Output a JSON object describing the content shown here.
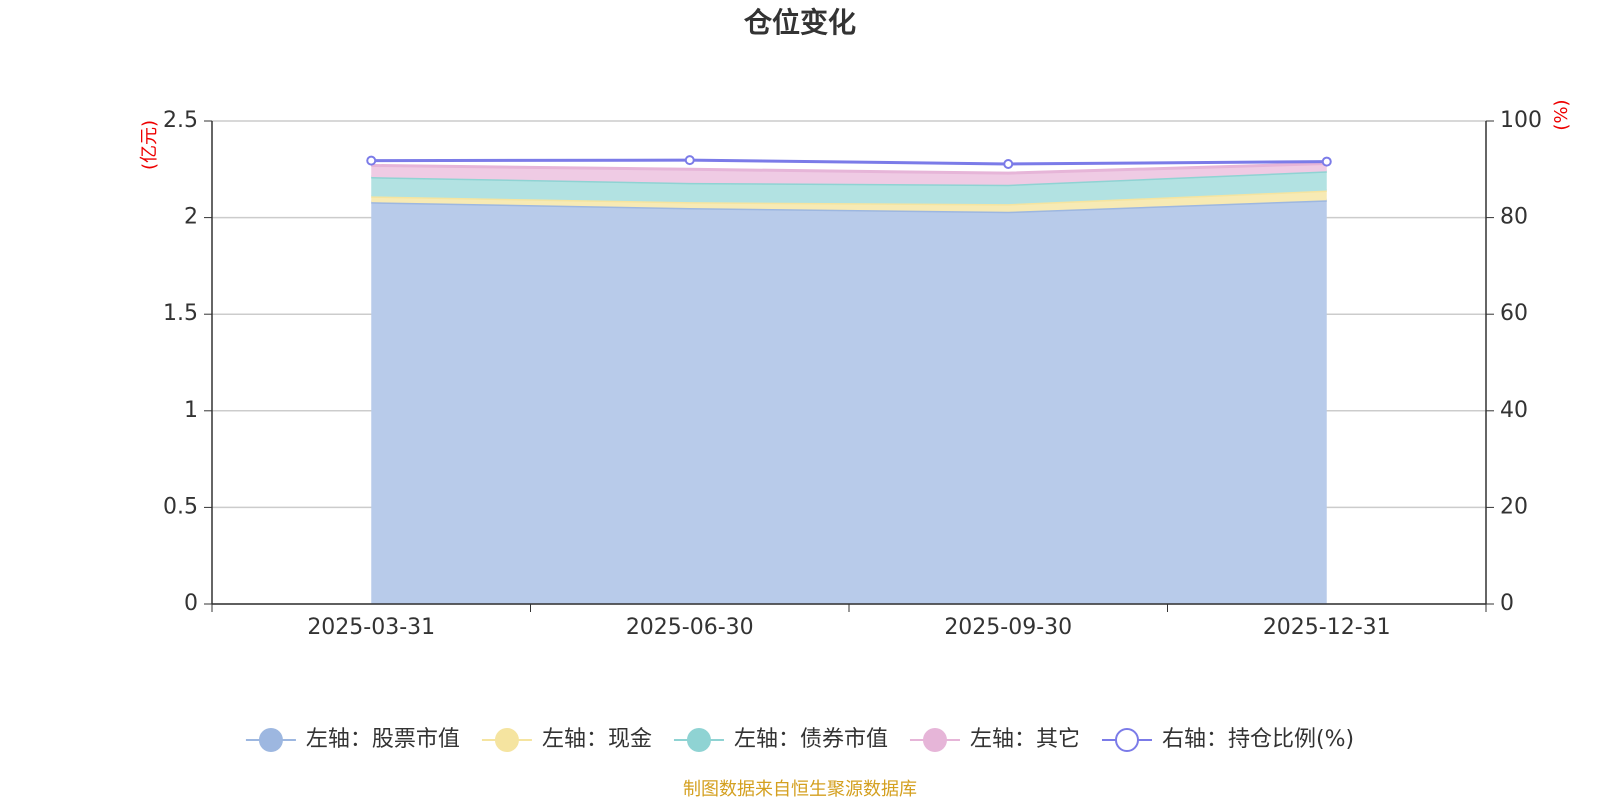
{
  "chart_data": {
    "type": "stacked-area",
    "title": "仓位变化",
    "y_label": "(亿元)",
    "y2_label": "(%)",
    "source": "制图数据来自恒生聚源数据库",
    "categories": [
      "2025-03-31",
      "2025-06-30",
      "2025-09-30",
      "2025-12-31"
    ],
    "ylim": [
      0,
      2.5
    ],
    "yticks": [
      0,
      0.5,
      1,
      1.5,
      2,
      2.5
    ],
    "y2lim": [
      0,
      100
    ],
    "y2ticks": [
      0,
      20,
      40,
      60,
      80,
      100
    ],
    "grid": true,
    "series": [
      {
        "name": "左轴：股票市值",
        "color": "#9db7e0",
        "fill": "#b8cbea",
        "values": [
          2.08,
          2.05,
          2.03,
          2.09
        ]
      },
      {
        "name": "左轴：现金",
        "color": "#f5e4a0",
        "fill": "#f7eab4",
        "values": [
          0.03,
          0.03,
          0.04,
          0.05
        ]
      },
      {
        "name": "左轴：债券市值",
        "color": "#8fd3d3",
        "fill": "#b2e2e2",
        "values": [
          0.1,
          0.1,
          0.1,
          0.1
        ]
      },
      {
        "name": "左轴：其它",
        "color": "#e6b5d8",
        "fill": "#efcbe4",
        "values": [
          0.06,
          0.07,
          0.06,
          0.04
        ]
      },
      {
        "name": "右轴：持仓比例(%)",
        "color": "#7b7be8",
        "axis": "y2",
        "values": [
          91.8,
          91.9,
          91.1,
          91.6
        ]
      }
    ]
  }
}
